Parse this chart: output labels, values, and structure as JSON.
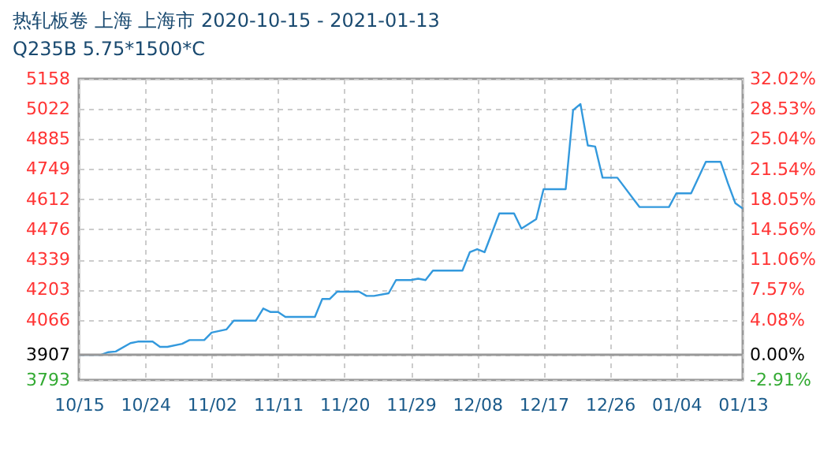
{
  "chart_data": {
    "type": "line",
    "title": "热轧板卷 上海 上海市 2020-10-15 - 2021-01-13",
    "subtitle": "Q235B 5.75*1500*C",
    "x": [
      "2020-10-15",
      "2020-10-18",
      "2020-10-19",
      "2020-10-20",
      "2020-10-22",
      "2020-10-23",
      "2020-10-25",
      "2020-10-26",
      "2020-10-27",
      "2020-10-29",
      "2020-10-30",
      "2020-11-01",
      "2020-11-02",
      "2020-11-04",
      "2020-11-05",
      "2020-11-08",
      "2020-11-09",
      "2020-11-10",
      "2020-11-11",
      "2020-11-12",
      "2020-11-16",
      "2020-11-17",
      "2020-11-18",
      "2020-11-19",
      "2020-11-22",
      "2020-11-23",
      "2020-11-24",
      "2020-11-26",
      "2020-11-27",
      "2020-11-29",
      "2020-11-30",
      "2020-12-01",
      "2020-12-02",
      "2020-12-06",
      "2020-12-07",
      "2020-12-08",
      "2020-12-09",
      "2020-12-11",
      "2020-12-13",
      "2020-12-14",
      "2020-12-16",
      "2020-12-17",
      "2020-12-20",
      "2020-12-21",
      "2020-12-22",
      "2020-12-23",
      "2020-12-24",
      "2020-12-25",
      "2020-12-27",
      "2020-12-30",
      "2021-01-03",
      "2021-01-04",
      "2021-01-06",
      "2021-01-08",
      "2021-01-10",
      "2021-01-11",
      "2021-01-12",
      "2021-01-13"
    ],
    "series": [
      {
        "color": "#3399dd",
        "values": [
          3907,
          3907,
          3919,
          3922,
          3960,
          3967,
          3967,
          3943,
          3943,
          3957,
          3974,
          3974,
          4008,
          4022,
          4062,
          4062,
          4117,
          4101,
          4101,
          4079,
          4079,
          4160,
          4160,
          4193,
          4193,
          4174,
          4174,
          4186,
          4246,
          4246,
          4252,
          4246,
          4289,
          4289,
          4372,
          4386,
          4372,
          4548,
          4548,
          4479,
          4522,
          4658,
          4658,
          5016,
          5044,
          4856,
          4851,
          4710,
          4710,
          4577,
          4577,
          4639,
          4639,
          4782,
          4782,
          4684,
          4594,
          4570
        ]
      }
    ],
    "xlim": [
      "2020-10-15",
      "2021-01-13"
    ],
    "xticks": [
      {
        "value": "2020-10-15",
        "label": "10/15"
      },
      {
        "value": "2020-10-24",
        "label": "10/24"
      },
      {
        "value": "2020-11-02",
        "label": "11/02"
      },
      {
        "value": "2020-11-11",
        "label": "11/11"
      },
      {
        "value": "2020-11-20",
        "label": "11/20"
      },
      {
        "value": "2020-11-29",
        "label": "11/29"
      },
      {
        "value": "2020-12-08",
        "label": "12/08"
      },
      {
        "value": "2020-12-17",
        "label": "12/17"
      },
      {
        "value": "2020-12-26",
        "label": "12/26"
      },
      {
        "value": "2021-01-04",
        "label": "01/04"
      },
      {
        "value": "2021-01-13",
        "label": "01/13"
      }
    ],
    "ylim": [
      3793,
      5158
    ],
    "yticks": [
      3793,
      3907,
      4066,
      4203,
      4339,
      4476,
      4612,
      4749,
      4885,
      5022,
      5158
    ],
    "y2lim": [
      -2.91,
      32.02
    ],
    "y2ticks": [
      {
        "value": -2.91,
        "label": "-2.91%"
      },
      {
        "value": 0,
        "label": "0.00%"
      },
      {
        "value": 4.08,
        "label": "4.08%"
      },
      {
        "value": 7.57,
        "label": "7.57%"
      },
      {
        "value": 11.06,
        "label": "11.06%"
      },
      {
        "value": 14.56,
        "label": "14.56%"
      },
      {
        "value": 18.05,
        "label": "18.05%"
      },
      {
        "value": 21.54,
        "label": "21.54%"
      },
      {
        "value": 25.04,
        "label": "25.04%"
      },
      {
        "value": 28.53,
        "label": "28.53%"
      },
      {
        "value": 32.02,
        "label": "32.02%"
      }
    ],
    "ref_lines": [
      {
        "axis": "y",
        "value": 3907,
        "color": "#999999"
      }
    ],
    "grid": true
  }
}
